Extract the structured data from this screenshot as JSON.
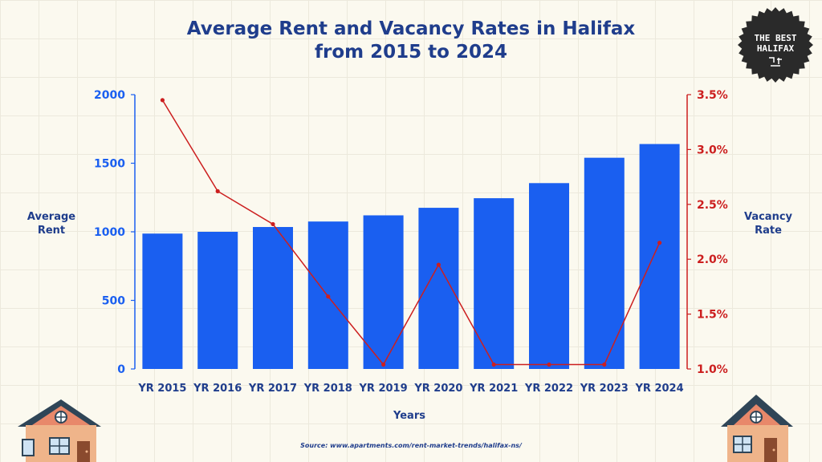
{
  "chart_data": {
    "type": "bar",
    "title": "Average Rent and Vacancy Rates in Halifax from 2015 to 2024",
    "xlabel": "Years",
    "ylabel": "Average Rent",
    "y2label": "Vacancy Rate",
    "categories": [
      "YR 2015",
      "YR 2016",
      "YR 2017",
      "YR 2018",
      "YR 2019",
      "YR 2020",
      "YR 2021",
      "YR 2022",
      "YR 2023",
      "YR 2024"
    ],
    "ylim": [
      0,
      2000
    ],
    "y_ticks": [
      "0",
      "500",
      "1000",
      "1500",
      "2000"
    ],
    "y2lim": [
      1.0,
      3.5
    ],
    "y2_ticks": [
      "1.0%",
      "1.5%",
      "2.0%",
      "2.5%",
      "3.0%",
      "3.5%"
    ],
    "series": [
      {
        "type": "bar",
        "axis": "left",
        "values": [
          987,
          1000,
          1035,
          1075,
          1120,
          1175,
          1245,
          1355,
          1540,
          1640
        ]
      },
      {
        "type": "line",
        "axis": "right",
        "values": [
          3.45,
          2.62,
          2.32,
          1.66,
          1.04,
          1.95,
          1.04,
          1.04,
          1.04,
          2.15
        ]
      }
    ],
    "grid": false,
    "legend": "none",
    "bar_color": "#1a5ff0",
    "line_color": "#cc1f1f"
  },
  "source": "Source: www.apartments.com/rent-market-trends/halifax-ns/",
  "badge": {
    "line1": "THE BEST",
    "line2": "HALIFAX"
  },
  "colors": {
    "navy": "#1f3d8c",
    "axis_left": "#1a5ff0",
    "axis_right": "#cc1f1f"
  },
  "decorations": [
    "house-icon-left",
    "house-icon-right",
    "the-best-halifax-badge"
  ]
}
